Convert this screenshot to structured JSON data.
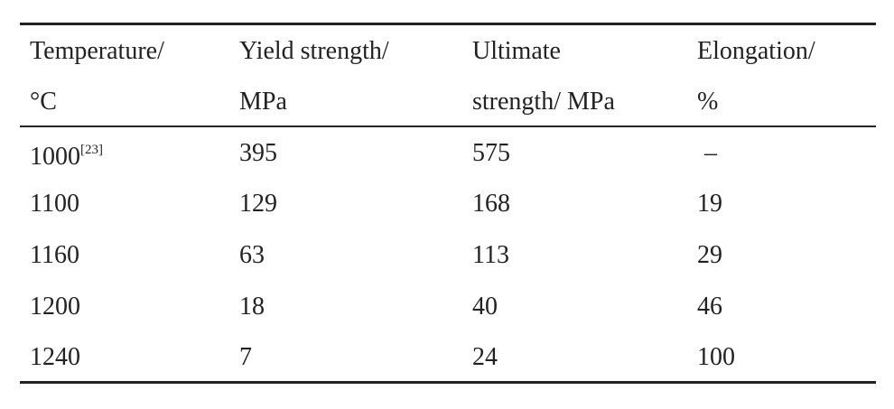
{
  "table": {
    "header": [
      [
        "Temperature/",
        "°C"
      ],
      [
        "Yield strength/",
        "MPa"
      ],
      [
        "Ultimate",
        "strength/ MPa"
      ],
      [
        "Elongation/",
        "%"
      ]
    ],
    "rows": [
      [
        {
          "text": "1000",
          "sup": "[23]"
        },
        "395",
        "575",
        "–"
      ],
      [
        "1100",
        "129",
        "168",
        "19"
      ],
      [
        "1160",
        "63",
        "113",
        "29"
      ],
      [
        "1200",
        "18",
        "40",
        "46"
      ],
      [
        "1240",
        "7",
        "24",
        "100"
      ]
    ]
  }
}
